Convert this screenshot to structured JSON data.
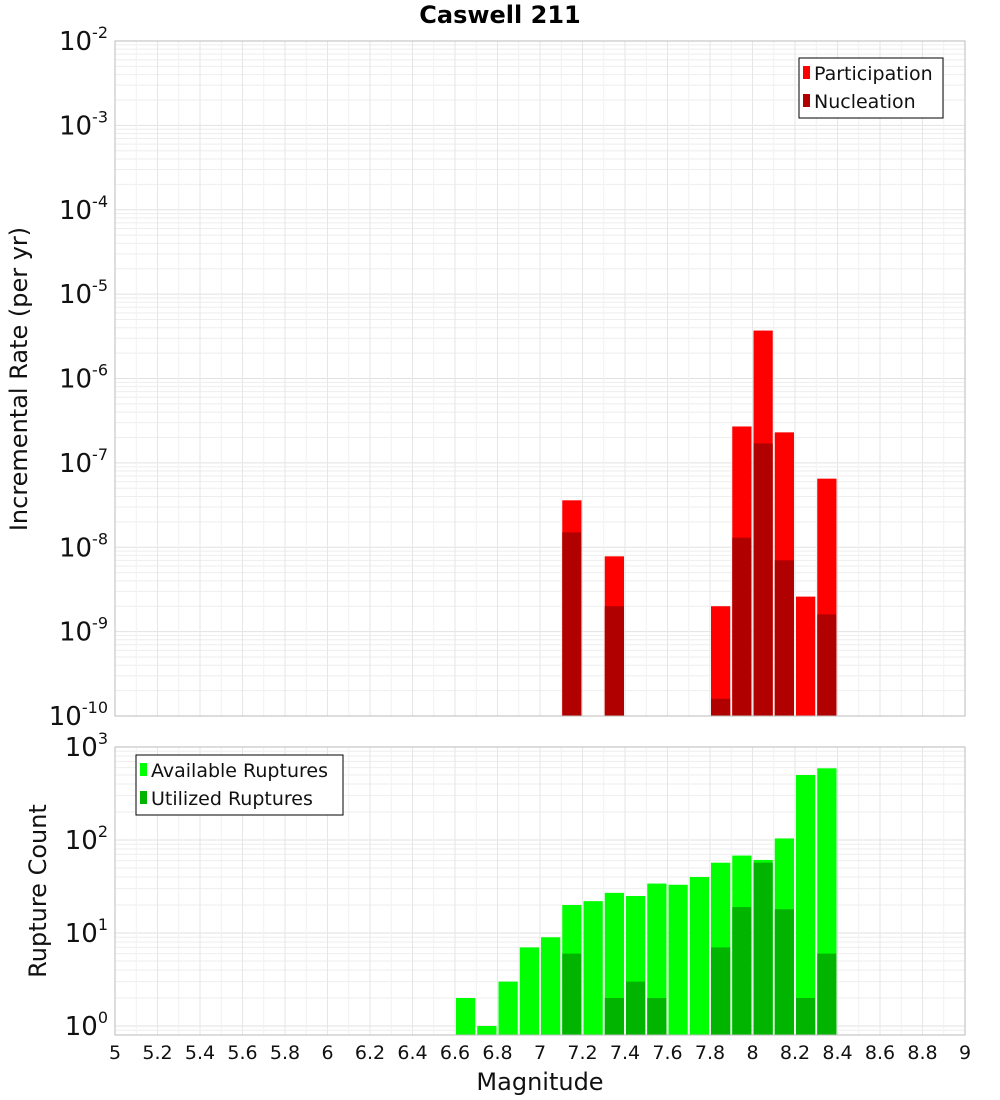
{
  "chart_data": {
    "type": "bar",
    "title": "Caswell 211",
    "xlabel": "Magnitude",
    "x_range": [
      5,
      9
    ],
    "x_ticks": [
      "5",
      "5.2",
      "5.4",
      "5.6",
      "5.8",
      "6",
      "6.2",
      "6.4",
      "6.6",
      "6.8",
      "7",
      "7.2",
      "7.4",
      "7.6",
      "7.8",
      "8",
      "8.2",
      "8.4",
      "8.6",
      "8.8",
      "9"
    ],
    "bar_width": 0.1,
    "grid": true,
    "panels": [
      {
        "id": "rate",
        "ylabel": "Incremental Rate (per yr)",
        "y_scale": "log",
        "ylim": [
          1e-10,
          0.01
        ],
        "y_tick_exponents": [
          "-2",
          "-3",
          "-4",
          "-5",
          "-6",
          "-7",
          "-8",
          "-9",
          "-10"
        ],
        "legend_position": "top-right",
        "series": [
          {
            "name": "Participation",
            "color": "#ff0000",
            "x": [
              7.15,
              7.35,
              7.85,
              7.95,
              8.05,
              8.15,
              8.25,
              8.35
            ],
            "values": [
              3.6e-08,
              7.8e-09,
              2e-09,
              2.7e-07,
              3.7e-06,
              2.3e-07,
              2.6e-09,
              6.5e-08
            ]
          },
          {
            "name": "Nucleation",
            "color": "#b00000",
            "x": [
              7.15,
              7.35,
              7.85,
              7.95,
              8.05,
              8.15,
              8.35
            ],
            "values": [
              1.5e-08,
              2e-09,
              1.6e-10,
              1.3e-08,
              1.7e-07,
              7e-09,
              1.6e-09
            ]
          }
        ]
      },
      {
        "id": "count",
        "ylabel": "Rupture Count",
        "y_scale": "log",
        "ylim": [
          0.8,
          1000
        ],
        "y_tick_exponents": [
          "3",
          "2",
          "1",
          "0"
        ],
        "legend_position": "top-left",
        "series": [
          {
            "name": "Available Ruptures",
            "color": "#00ff00",
            "x": [
              6.65,
              6.75,
              6.85,
              6.95,
              7.05,
              7.15,
              7.25,
              7.35,
              7.45,
              7.55,
              7.65,
              7.75,
              7.85,
              7.95,
              8.05,
              8.15,
              8.25,
              8.35
            ],
            "values": [
              2,
              1,
              3,
              7,
              9,
              20,
              22,
              27,
              25,
              34,
              33,
              40,
              57,
              68,
              61,
              104,
              500,
              590
            ]
          },
          {
            "name": "Utilized Ruptures",
            "color": "#00b400",
            "x": [
              7.15,
              7.35,
              7.45,
              7.55,
              7.85,
              7.95,
              8.05,
              8.15,
              8.25,
              8.35
            ],
            "values": [
              6,
              2,
              3,
              2,
              7,
              19,
              57,
              18,
              2,
              6
            ]
          }
        ]
      }
    ]
  }
}
